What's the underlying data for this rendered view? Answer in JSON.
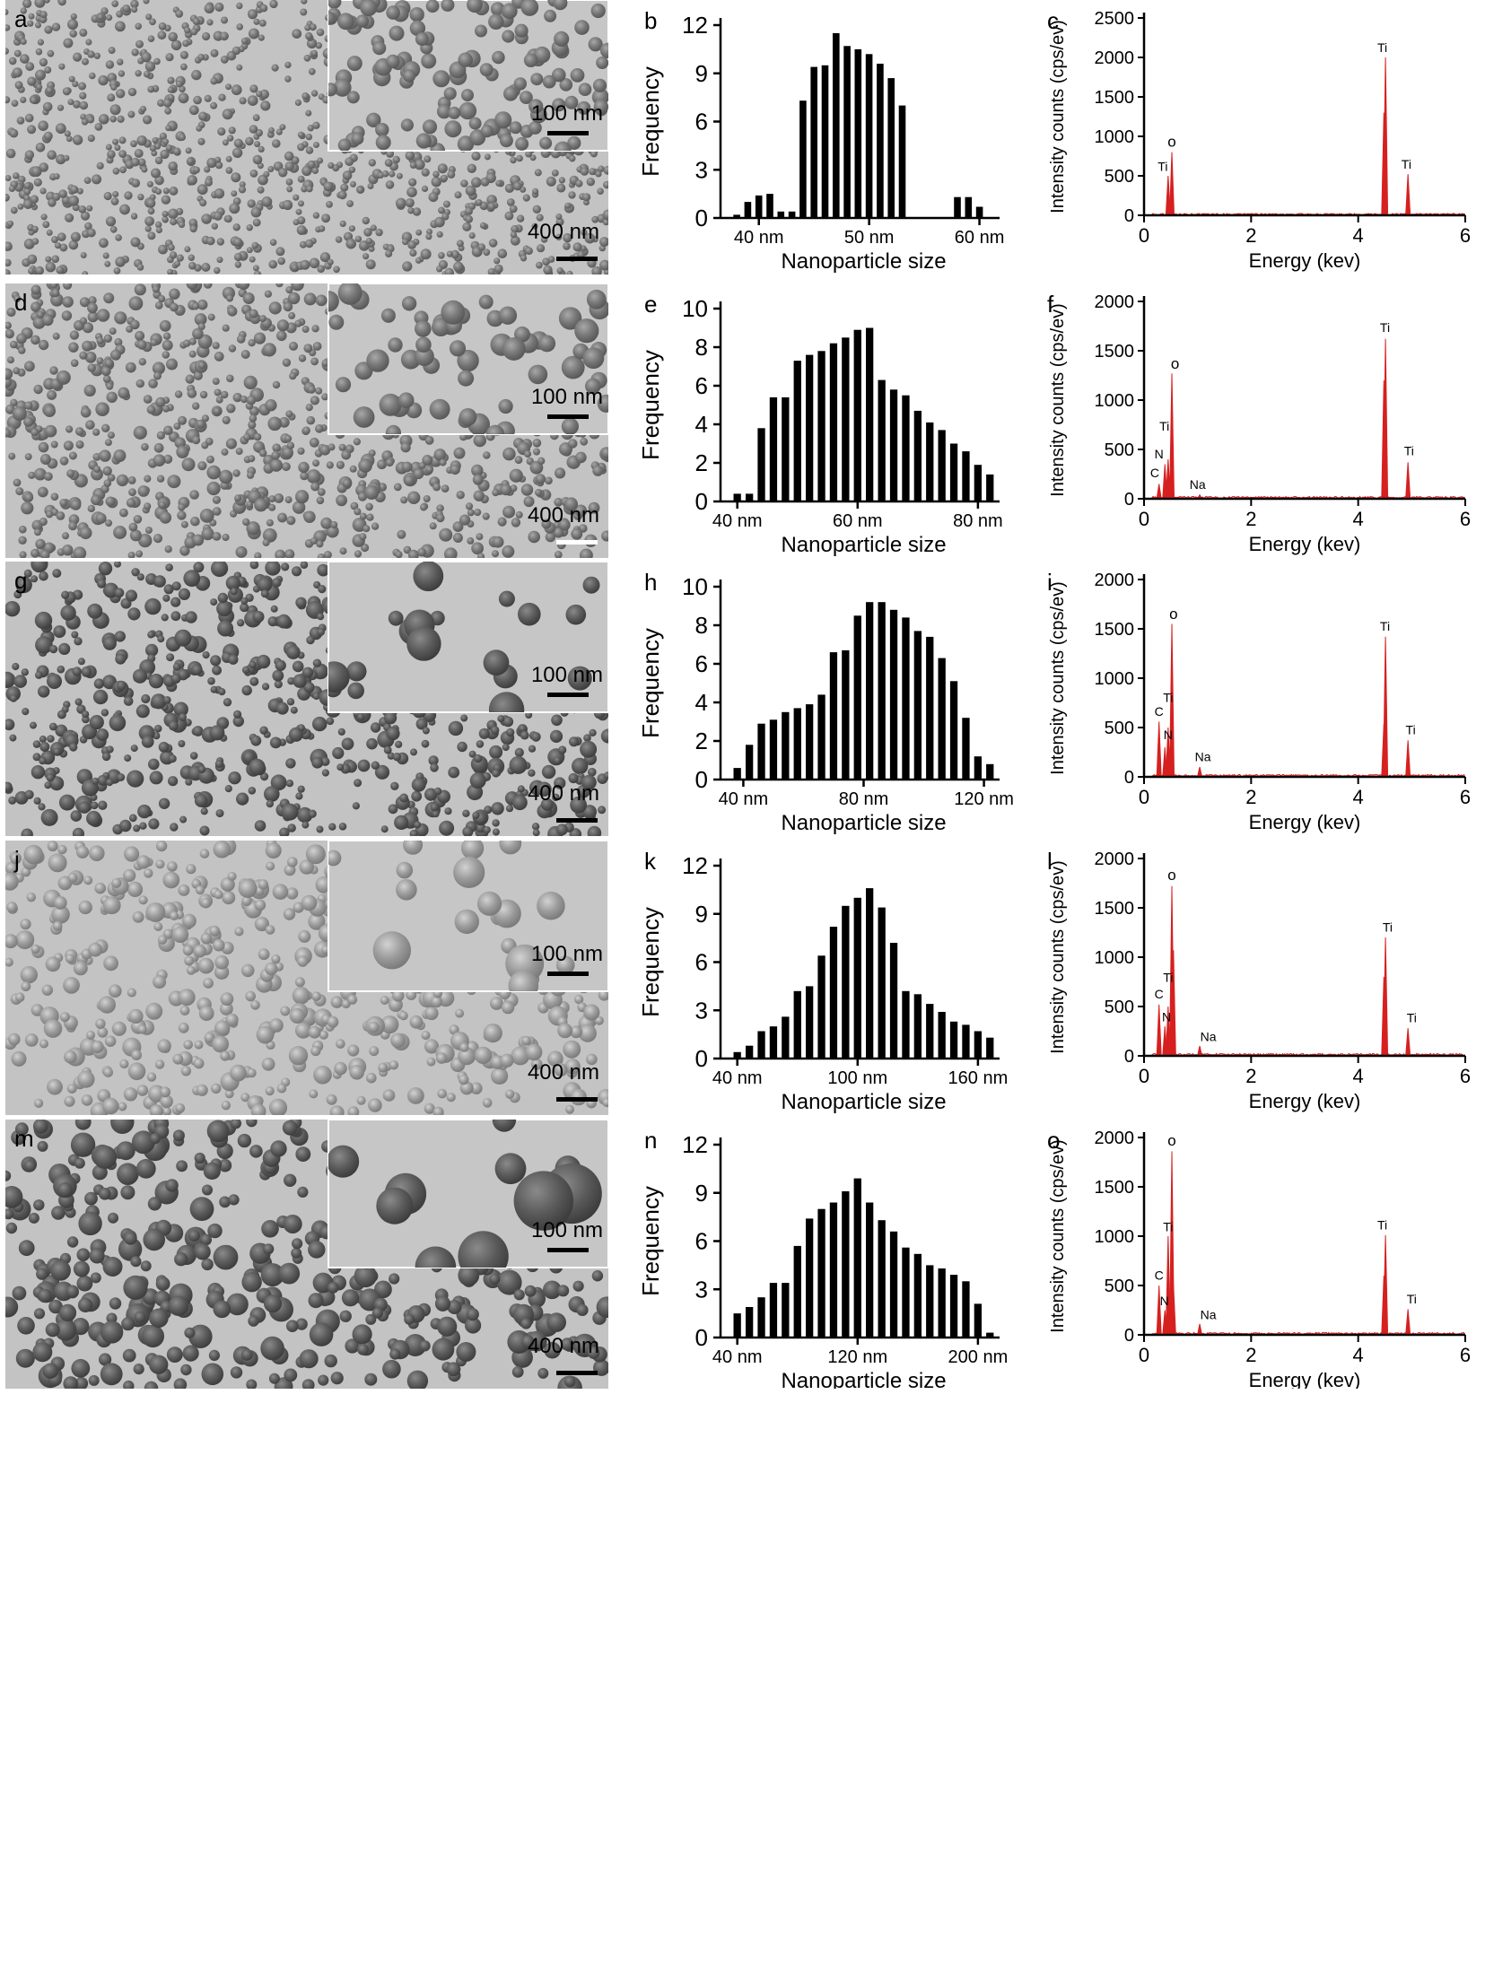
{
  "rows": [
    {
      "img_letter": "a",
      "hist_letter": "b",
      "eds_letter": "c",
      "inset_scale": "100 nm",
      "main_scale": "400 nm",
      "sem": {
        "density": 1150,
        "rmin": 3.5,
        "rmax": 6,
        "iden": 130,
        "irmin": 7,
        "irmax": 10,
        "seed": 11,
        "dark": 0.62
      },
      "hist": {
        "ylabel": "Frequency",
        "xlabel": "Nanoparticle size",
        "ymax": 12,
        "yticks": [
          0,
          3,
          6,
          9,
          12
        ],
        "xticks": [
          {
            "value": 40,
            "label": "40 nm"
          },
          {
            "value": 50,
            "label": "50 nm"
          },
          {
            "value": 60,
            "label": "60 nm"
          }
        ],
        "x": [
          38,
          39,
          40,
          41,
          42,
          43,
          44,
          45,
          46,
          47,
          48,
          49,
          50,
          51,
          52,
          53,
          54,
          55,
          56,
          57,
          58,
          59,
          60,
          61
        ],
        "values": [
          0.2,
          1.0,
          1.4,
          1.5,
          0.4,
          0.4,
          7.3,
          9.4,
          9.5,
          11.5,
          10.7,
          10.5,
          10.2,
          9.6,
          8.7,
          7.0,
          0,
          0,
          0,
          0,
          1.3,
          1.3,
          0.7,
          0
        ]
      },
      "eds": {
        "ylabel": "Intensity counts (cps/ev)",
        "xlabel": "Energy (kev)",
        "ymax": 2500,
        "yticks": [
          0,
          500,
          1000,
          1500,
          2000,
          2500
        ],
        "xticks": [
          0,
          2,
          4,
          6
        ],
        "peaks": [
          {
            "x": 0.45,
            "y": 500
          },
          {
            "x": 0.52,
            "y": 800
          },
          {
            "x": 4.51,
            "y": 2000
          },
          {
            "x": 4.48,
            "y": 1300
          },
          {
            "x": 4.93,
            "y": 520
          },
          {
            "x": 4.93,
            "y": 350
          }
        ],
        "labels": [
          {
            "text": "o",
            "x": 0.52,
            "y": 870
          },
          {
            "text": "Ti",
            "x": 0.35,
            "y": 560
          },
          {
            "text": "Ti",
            "x": 4.45,
            "y": 2070
          },
          {
            "text": "Ti",
            "x": 4.9,
            "y": 590
          }
        ]
      }
    },
    {
      "img_letter": "d",
      "hist_letter": "e",
      "eds_letter": "f",
      "inset_scale": "100 nm",
      "main_scale": "400 nm",
      "sem": {
        "density": 950,
        "rmin": 4,
        "rmax": 8,
        "iden": 60,
        "irmin": 8,
        "irmax": 14,
        "seed": 23,
        "dark": 0.55
      },
      "hist": {
        "ylabel": "Frequency",
        "xlabel": "Nanoparticle size",
        "ymax": 10,
        "yticks": [
          0,
          2,
          4,
          6,
          8,
          10
        ],
        "xticks": [
          {
            "value": 40,
            "label": "40 nm"
          },
          {
            "value": 60,
            "label": "60 nm"
          },
          {
            "value": 80,
            "label": "80 nm"
          }
        ],
        "x": [
          40,
          42,
          44,
          46,
          48,
          50,
          52,
          54,
          56,
          58,
          60,
          62,
          64,
          66,
          68,
          70,
          72,
          74,
          76,
          78,
          80,
          82
        ],
        "values": [
          0.4,
          0.4,
          3.8,
          5.4,
          5.4,
          7.3,
          7.6,
          7.8,
          8.2,
          8.5,
          8.9,
          9.0,
          6.3,
          5.8,
          5.5,
          4.7,
          4.1,
          3.7,
          3.0,
          2.6,
          1.9,
          1.4
        ]
      },
      "eds": {
        "ylabel": "Intensity counts (cps/ev)",
        "xlabel": "Energy (kev)",
        "ymax": 2000,
        "yticks": [
          0,
          500,
          1000,
          1500,
          2000
        ],
        "xticks": [
          0,
          2,
          4,
          6
        ],
        "peaks": [
          {
            "x": 0.28,
            "y": 150
          },
          {
            "x": 0.39,
            "y": 350
          },
          {
            "x": 0.45,
            "y": 400
          },
          {
            "x": 0.52,
            "y": 1270
          },
          {
            "x": 1.04,
            "y": 40
          },
          {
            "x": 4.51,
            "y": 1620
          },
          {
            "x": 4.48,
            "y": 1200
          },
          {
            "x": 4.93,
            "y": 370
          }
        ],
        "labels": [
          {
            "text": "o",
            "x": 0.58,
            "y": 1320
          },
          {
            "text": "Ti",
            "x": 0.38,
            "y": 690
          },
          {
            "text": "N",
            "x": 0.28,
            "y": 410
          },
          {
            "text": "C",
            "x": 0.2,
            "y": 220
          },
          {
            "text": "Na",
            "x": 1.0,
            "y": 100
          },
          {
            "text": "Ti",
            "x": 4.5,
            "y": 1690
          },
          {
            "text": "Ti",
            "x": 4.95,
            "y": 440
          }
        ]
      }
    },
    {
      "img_letter": "g",
      "hist_letter": "h",
      "eds_letter": "i",
      "inset_scale": "100 nm",
      "main_scale": "400 nm",
      "sem": {
        "density": 780,
        "rmin": 4,
        "rmax": 10,
        "iden": 20,
        "irmin": 8,
        "irmax": 22,
        "seed": 37,
        "dark": 0.42
      },
      "hist": {
        "ylabel": "Frequency",
        "xlabel": "Nanoparticle size",
        "ymax": 10,
        "yticks": [
          0,
          2,
          4,
          6,
          8,
          10
        ],
        "xticks": [
          {
            "value": 40,
            "label": "40 nm"
          },
          {
            "value": 80,
            "label": "80 nm"
          },
          {
            "value": 120,
            "label": "120 nm"
          }
        ],
        "x": [
          38,
          42,
          46,
          50,
          54,
          58,
          62,
          66,
          70,
          74,
          78,
          82,
          86,
          90,
          94,
          98,
          102,
          106,
          110,
          114,
          118,
          122
        ],
        "values": [
          0.6,
          1.8,
          2.9,
          3.1,
          3.5,
          3.7,
          3.9,
          4.4,
          6.6,
          6.7,
          8.5,
          9.2,
          9.2,
          8.8,
          8.4,
          7.7,
          7.4,
          6.3,
          5.1,
          3.2,
          1.2,
          0.8
        ]
      },
      "eds": {
        "ylabel": "Intensity counts (cps/ev)",
        "xlabel": "Energy (kev)",
        "ymax": 2000,
        "yticks": [
          0,
          500,
          1000,
          1500,
          2000
        ],
        "xticks": [
          0,
          2,
          4,
          6
        ],
        "peaks": [
          {
            "x": 0.28,
            "y": 560
          },
          {
            "x": 0.39,
            "y": 300
          },
          {
            "x": 0.45,
            "y": 500
          },
          {
            "x": 0.52,
            "y": 1550
          },
          {
            "x": 1.04,
            "y": 100
          },
          {
            "x": 4.51,
            "y": 1420
          },
          {
            "x": 4.48,
            "y": 540
          },
          {
            "x": 4.93,
            "y": 370
          }
        ],
        "labels": [
          {
            "text": "o",
            "x": 0.55,
            "y": 1600
          },
          {
            "text": "Ti",
            "x": 0.45,
            "y": 760
          },
          {
            "text": "C",
            "x": 0.28,
            "y": 620
          },
          {
            "text": "N",
            "x": 0.45,
            "y": 380
          },
          {
            "text": "Na",
            "x": 1.1,
            "y": 160
          },
          {
            "text": "Ti",
            "x": 4.5,
            "y": 1480
          },
          {
            "text": "Ti",
            "x": 4.98,
            "y": 430
          }
        ]
      }
    },
    {
      "img_letter": "j",
      "hist_letter": "k",
      "eds_letter": "l",
      "inset_scale": "100 nm",
      "main_scale": "400 nm",
      "sem": {
        "density": 600,
        "rmin": 5,
        "rmax": 11,
        "iden": 18,
        "irmin": 8,
        "irmax": 22,
        "seed": 53,
        "dark": 0.72
      },
      "hist": {
        "ylabel": "Frequency",
        "xlabel": "Nanoparticle size",
        "ymax": 12,
        "yticks": [
          0,
          3,
          6,
          9,
          12
        ],
        "xticks": [
          {
            "value": 40,
            "label": "40 nm"
          },
          {
            "value": 100,
            "label": "100 nm"
          },
          {
            "value": 160,
            "label": "160 nm"
          }
        ],
        "x": [
          40,
          46,
          52,
          58,
          64,
          70,
          76,
          82,
          88,
          94,
          100,
          106,
          112,
          118,
          124,
          130,
          136,
          142,
          148,
          154,
          160,
          166
        ],
        "values": [
          0.4,
          0.8,
          1.7,
          2.0,
          2.6,
          4.2,
          4.5,
          6.4,
          8.2,
          9.5,
          10.0,
          10.6,
          9.4,
          7.2,
          4.2,
          4.0,
          3.4,
          2.9,
          2.3,
          2.1,
          1.7,
          1.3
        ]
      },
      "eds": {
        "ylabel": "Intensity counts (cps/ev)",
        "xlabel": "Energy (kev)",
        "ymax": 2000,
        "yticks": [
          0,
          500,
          1000,
          1500,
          2000
        ],
        "xticks": [
          0,
          2,
          4,
          6
        ],
        "peaks": [
          {
            "x": 0.28,
            "y": 520
          },
          {
            "x": 0.39,
            "y": 300
          },
          {
            "x": 0.45,
            "y": 500
          },
          {
            "x": 0.52,
            "y": 1720
          },
          {
            "x": 0.55,
            "y": 1070
          },
          {
            "x": 1.04,
            "y": 100
          },
          {
            "x": 4.51,
            "y": 1200
          },
          {
            "x": 4.48,
            "y": 800
          },
          {
            "x": 4.93,
            "y": 280
          }
        ],
        "labels": [
          {
            "text": "o",
            "x": 0.52,
            "y": 1780
          },
          {
            "text": "Ti",
            "x": 0.45,
            "y": 750
          },
          {
            "text": "C",
            "x": 0.28,
            "y": 580
          },
          {
            "text": "N",
            "x": 0.42,
            "y": 350
          },
          {
            "text": "Na",
            "x": 1.2,
            "y": 150
          },
          {
            "text": "Ti",
            "x": 4.55,
            "y": 1260
          },
          {
            "text": "Ti",
            "x": 5.0,
            "y": 340
          }
        ]
      }
    },
    {
      "img_letter": "m",
      "hist_letter": "n",
      "eds_letter": "o",
      "inset_scale": "100 nm",
      "main_scale": "400 nm",
      "sem": {
        "density": 480,
        "rmin": 6,
        "rmax": 14,
        "iden": 10,
        "irmin": 10,
        "irmax": 34,
        "seed": 71,
        "dark": 0.38
      },
      "hist": {
        "ylabel": "Frequency",
        "xlabel": "Nanoparticle size",
        "ymax": 12,
        "yticks": [
          0,
          3,
          6,
          9,
          12
        ],
        "xticks": [
          {
            "value": 40,
            "label": "40 nm"
          },
          {
            "value": 120,
            "label": "120 nm"
          },
          {
            "value": 200,
            "label": "200 nm"
          }
        ],
        "x": [
          40,
          48,
          56,
          64,
          72,
          80,
          88,
          96,
          104,
          112,
          120,
          128,
          136,
          144,
          152,
          160,
          168,
          176,
          184,
          192,
          200,
          208
        ],
        "values": [
          1.5,
          1.9,
          2.5,
          3.4,
          3.4,
          5.7,
          7.4,
          8.0,
          8.4,
          9.1,
          9.9,
          8.4,
          7.3,
          6.6,
          5.6,
          5.2,
          4.5,
          4.3,
          3.9,
          3.5,
          2.1,
          0.3
        ]
      },
      "eds": {
        "ylabel": "Intensity counts (cps/ev)",
        "xlabel": "Energy (kev)",
        "ymax": 2000,
        "yticks": [
          0,
          500,
          1000,
          1500,
          2000
        ],
        "xticks": [
          0,
          2,
          4,
          6
        ],
        "peaks": [
          {
            "x": 0.28,
            "y": 500
          },
          {
            "x": 0.39,
            "y": 250
          },
          {
            "x": 0.45,
            "y": 1000
          },
          {
            "x": 0.52,
            "y": 1860
          },
          {
            "x": 0.55,
            "y": 500
          },
          {
            "x": 1.04,
            "y": 110
          },
          {
            "x": 4.51,
            "y": 1010
          },
          {
            "x": 4.48,
            "y": 600
          },
          {
            "x": 4.93,
            "y": 260
          }
        ],
        "labels": [
          {
            "text": "o",
            "x": 0.52,
            "y": 1920
          },
          {
            "text": "Ti",
            "x": 0.45,
            "y": 1050
          },
          {
            "text": "C",
            "x": 0.28,
            "y": 560
          },
          {
            "text": "N",
            "x": 0.38,
            "y": 300
          },
          {
            "text": "Na",
            "x": 1.2,
            "y": 160
          },
          {
            "text": "Ti",
            "x": 4.45,
            "y": 1070
          },
          {
            "text": "Ti",
            "x": 5.0,
            "y": 320
          }
        ]
      }
    }
  ],
  "chart_data": [
    {
      "type": "bar",
      "panel": "b",
      "xlabel": "Nanoparticle size",
      "ylabel": "Frequency",
      "ylim": [
        0,
        12
      ]
    },
    {
      "type": "line",
      "panel": "c",
      "xlabel": "Energy (kev)",
      "ylabel": "Intensity counts (cps/ev)",
      "xlim": [
        0,
        6
      ],
      "ylim": [
        0,
        2500
      ]
    },
    {
      "type": "bar",
      "panel": "e",
      "xlabel": "Nanoparticle size",
      "ylabel": "Frequency",
      "ylim": [
        0,
        10
      ]
    },
    {
      "type": "line",
      "panel": "f",
      "xlabel": "Energy (kev)",
      "ylabel": "Intensity counts (cps/ev)",
      "xlim": [
        0,
        6
      ],
      "ylim": [
        0,
        2000
      ]
    },
    {
      "type": "bar",
      "panel": "h",
      "xlabel": "Nanoparticle size",
      "ylabel": "Frequency",
      "ylim": [
        0,
        10
      ]
    },
    {
      "type": "line",
      "panel": "i",
      "xlabel": "Energy (kev)",
      "ylabel": "Intensity counts (cps/ev)",
      "xlim": [
        0,
        6
      ],
      "ylim": [
        0,
        2000
      ]
    },
    {
      "type": "bar",
      "panel": "k",
      "xlabel": "Nanoparticle size",
      "ylabel": "Frequency",
      "ylim": [
        0,
        12
      ]
    },
    {
      "type": "line",
      "panel": "l",
      "xlabel": "Energy (kev)",
      "ylabel": "Intensity counts (cps/ev)",
      "xlim": [
        0,
        6
      ],
      "ylim": [
        0,
        2000
      ]
    },
    {
      "type": "bar",
      "panel": "n",
      "xlabel": "Nanoparticle size",
      "ylabel": "Frequency",
      "ylim": [
        0,
        12
      ]
    },
    {
      "type": "line",
      "panel": "o",
      "xlabel": "Energy (kev)",
      "ylabel": "Intensity counts (cps/ev)",
      "xlim": [
        0,
        6
      ],
      "ylim": [
        0,
        2000
      ]
    }
  ],
  "colors": {
    "spectrum": "#d62020",
    "bars": "#000000",
    "substrate": "#c3c3c3",
    "inset_bg": "#c6c6c6"
  }
}
